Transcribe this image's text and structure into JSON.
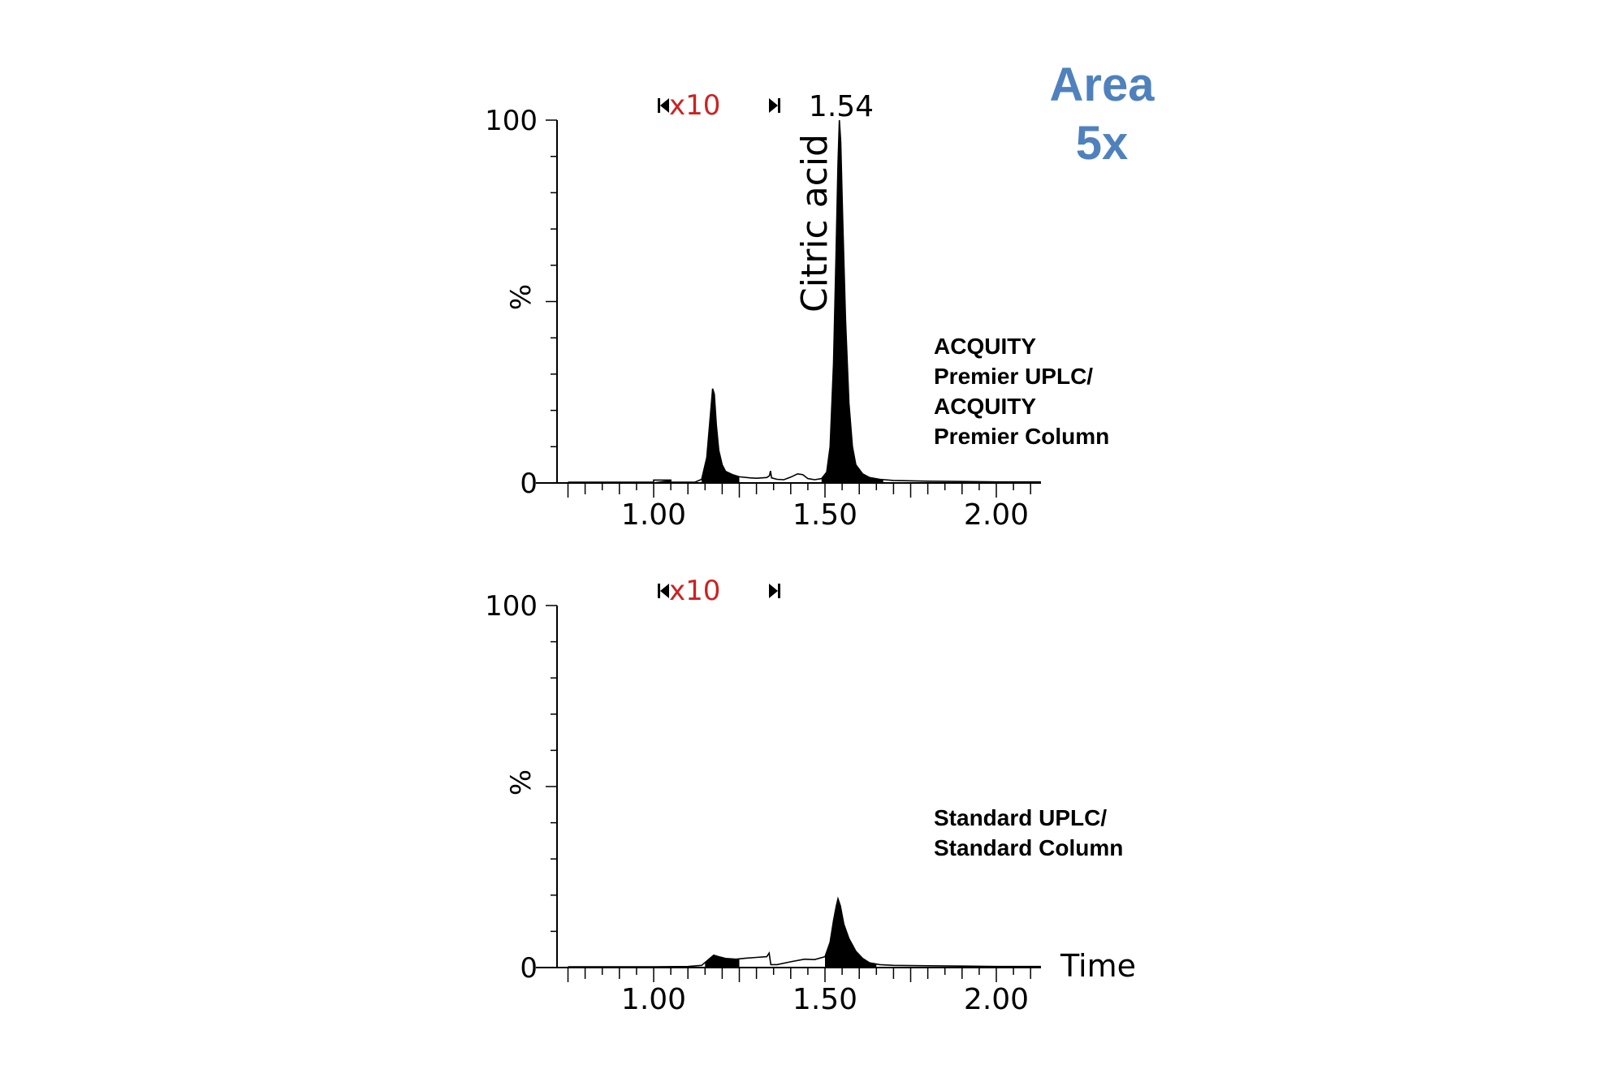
{
  "annotation": {
    "line1": "Area",
    "line2": "5x",
    "color": "#4f81bd"
  },
  "zoom_label": "x10",
  "zoom_color": "#cc2222",
  "peak_label": "1.54",
  "compound_label": "Citric acid",
  "time_label": "Time",
  "chart_data": [
    {
      "type": "area",
      "title": "",
      "system_label_lines": [
        "ACQUITY",
        "Premier UPLC/",
        "ACQUITY",
        "Premier Column"
      ],
      "xlabel": "",
      "ylabel": "%",
      "xlim": [
        0.75,
        2.13
      ],
      "ylim": [
        0,
        100
      ],
      "x_ticks": [
        "1.00",
        "1.50",
        "2.00"
      ],
      "y_ticks": [
        "0",
        "100"
      ],
      "zoom_region": [
        1.0,
        1.34
      ],
      "line": [
        [
          0.75,
          0.2
        ],
        [
          1.0,
          0.2
        ],
        [
          1.0,
          0.8
        ],
        [
          1.05,
          0.8
        ],
        [
          1.05,
          0.2
        ],
        [
          1.12,
          0.2
        ],
        [
          1.14,
          1.0
        ],
        [
          1.155,
          7
        ],
        [
          1.165,
          18
        ],
        [
          1.172,
          26
        ],
        [
          1.177,
          24.5
        ],
        [
          1.183,
          16
        ],
        [
          1.19,
          9
        ],
        [
          1.2,
          5
        ],
        [
          1.21,
          3.2
        ],
        [
          1.23,
          2.3
        ],
        [
          1.25,
          1.7
        ],
        [
          1.28,
          1.4
        ],
        [
          1.3,
          1.3
        ],
        [
          1.33,
          1.5
        ],
        [
          1.338,
          2.0
        ],
        [
          1.341,
          3.3
        ],
        [
          1.344,
          1.4
        ],
        [
          1.36,
          1.0
        ],
        [
          1.38,
          0.9
        ],
        [
          1.4,
          1.6
        ],
        [
          1.42,
          2.5
        ],
        [
          1.435,
          2.3
        ],
        [
          1.45,
          1.2
        ],
        [
          1.47,
          0.9
        ],
        [
          1.49,
          1.2
        ],
        [
          1.505,
          3
        ],
        [
          1.515,
          10
        ],
        [
          1.525,
          33
        ],
        [
          1.532,
          62
        ],
        [
          1.538,
          88
        ],
        [
          1.542,
          100
        ],
        [
          1.546,
          94
        ],
        [
          1.552,
          72
        ],
        [
          1.56,
          45
        ],
        [
          1.57,
          22
        ],
        [
          1.58,
          10
        ],
        [
          1.59,
          5
        ],
        [
          1.61,
          2.5
        ],
        [
          1.63,
          1.5
        ],
        [
          1.66,
          1.0
        ],
        [
          1.7,
          0.7
        ],
        [
          1.8,
          0.5
        ],
        [
          1.9,
          0.4
        ],
        [
          2.0,
          0.3
        ],
        [
          2.13,
          0.3
        ]
      ],
      "filled_regions": [
        [
          1.0,
          1.05
        ],
        [
          1.14,
          1.25
        ],
        [
          1.49,
          1.67
        ]
      ]
    },
    {
      "type": "area",
      "title": "",
      "system_label_lines": [
        "Standard UPLC/",
        "Standard Column"
      ],
      "xlabel": "Time",
      "ylabel": "%",
      "xlim": [
        0.75,
        2.13
      ],
      "ylim": [
        0,
        100
      ],
      "x_ticks": [
        "1.00",
        "1.50",
        "2.00"
      ],
      "y_ticks": [
        "0",
        "100"
      ],
      "zoom_region": [
        1.0,
        1.34
      ],
      "line": [
        [
          0.75,
          0.2
        ],
        [
          1.0,
          0.2
        ],
        [
          1.1,
          0.3
        ],
        [
          1.14,
          0.6
        ],
        [
          1.16,
          2.2
        ],
        [
          1.175,
          3.4
        ],
        [
          1.19,
          3.0
        ],
        [
          1.21,
          2.5
        ],
        [
          1.24,
          2.3
        ],
        [
          1.27,
          2.6
        ],
        [
          1.3,
          2.8
        ],
        [
          1.33,
          3.0
        ],
        [
          1.337,
          4.0
        ],
        [
          1.342,
          0.8
        ],
        [
          1.36,
          0.8
        ],
        [
          1.4,
          1.6
        ],
        [
          1.44,
          2.3
        ],
        [
          1.47,
          2.2
        ],
        [
          1.5,
          3.0
        ],
        [
          1.515,
          7
        ],
        [
          1.525,
          13
        ],
        [
          1.533,
          17
        ],
        [
          1.538,
          19
        ],
        [
          1.545,
          17
        ],
        [
          1.555,
          12
        ],
        [
          1.57,
          8
        ],
        [
          1.59,
          4.5
        ],
        [
          1.61,
          2.5
        ],
        [
          1.63,
          1.3
        ],
        [
          1.66,
          0.8
        ],
        [
          1.7,
          0.6
        ],
        [
          1.8,
          0.5
        ],
        [
          1.9,
          0.4
        ],
        [
          2.0,
          0.3
        ],
        [
          2.13,
          0.3
        ]
      ],
      "filled_regions": [
        [
          1.15,
          1.25
        ],
        [
          1.5,
          1.65
        ]
      ]
    }
  ]
}
